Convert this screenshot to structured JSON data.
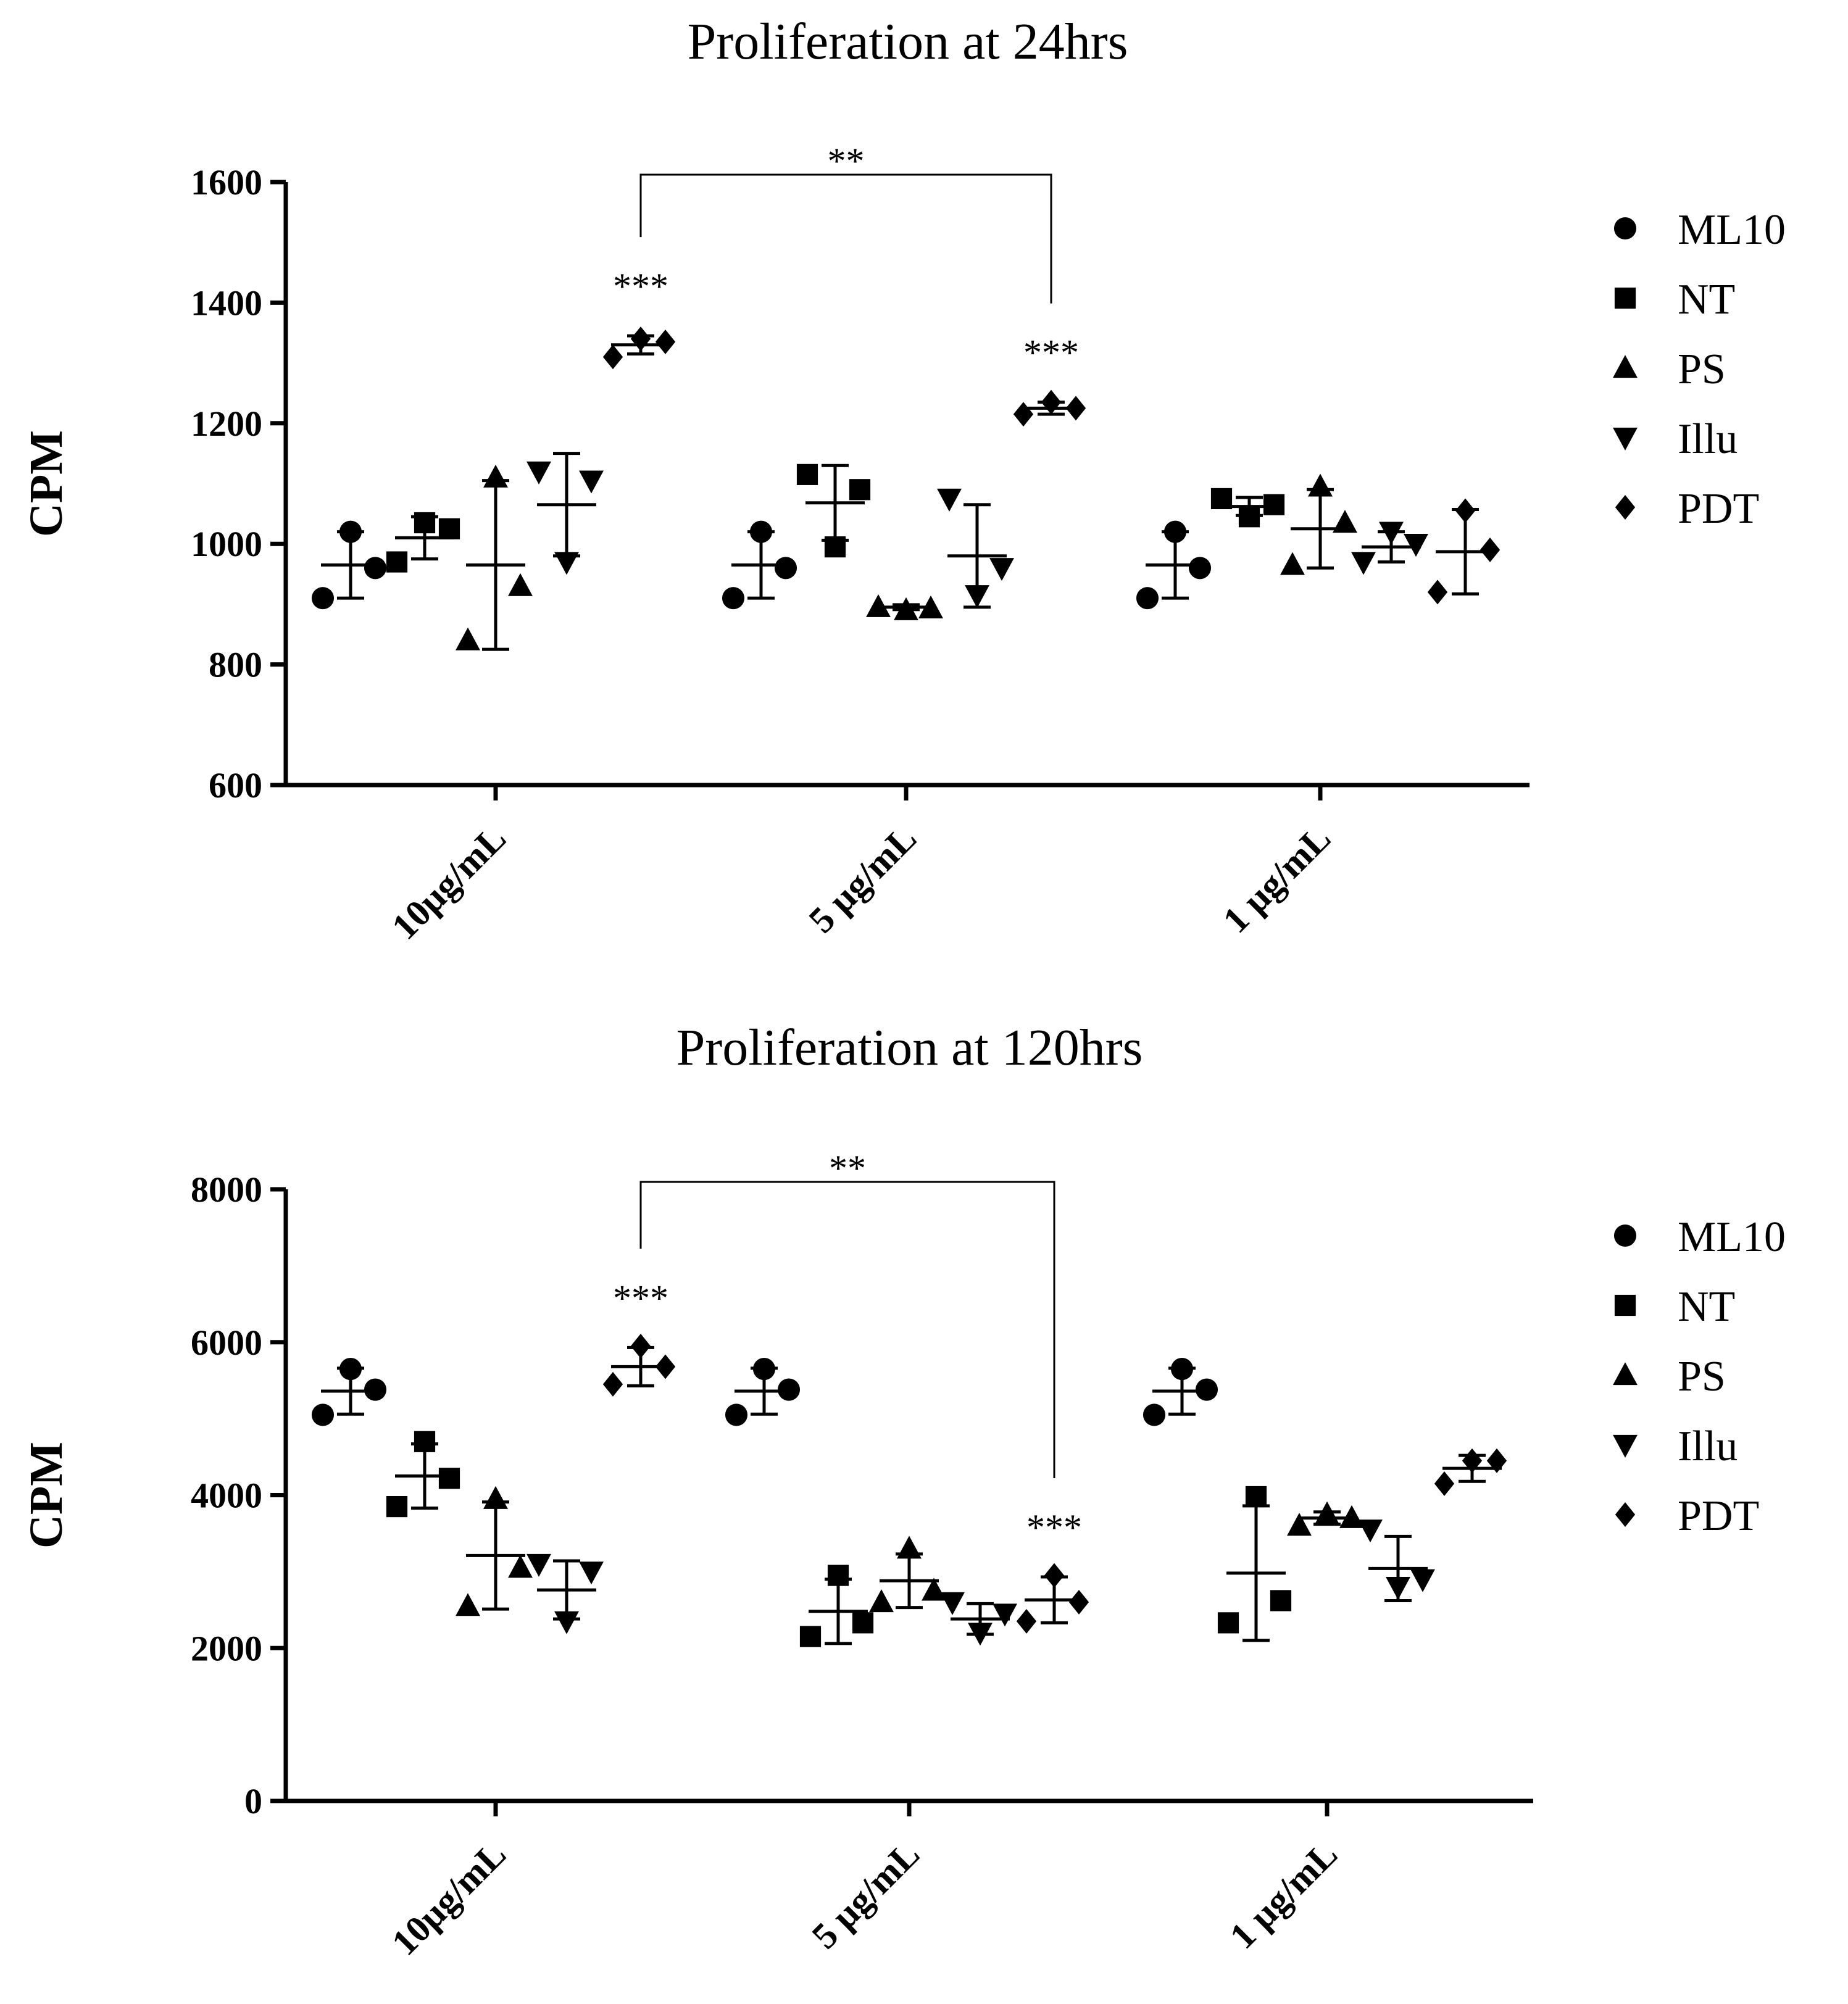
{
  "chart_data": [
    {
      "type": "scatter",
      "title": "Proliferation at 24hrs",
      "ylabel": "CPM",
      "xlabel": "",
      "ylim": [
        600,
        1600
      ],
      "yticks": [
        600,
        800,
        1000,
        1200,
        1400,
        1600
      ],
      "categories": [
        "10µg/mL",
        "5 µg/mL",
        "1 µg/mL"
      ],
      "legend": [
        "ML10",
        "NT",
        "PS",
        "Illu",
        "PDT"
      ],
      "legend_position": "right",
      "series": [
        {
          "name": "ML10",
          "marker": "circle",
          "points": [
            [
              910,
              1020,
              960
            ],
            [
              910,
              1020,
              960
            ],
            [
              910,
              1020,
              960
            ]
          ],
          "mean": [
            965,
            965,
            965
          ],
          "sd": [
            55,
            55,
            55
          ]
        },
        {
          "name": "NT",
          "marker": "square",
          "points": [
            [
              970,
              1035,
              1025
            ],
            [
              1115,
              995,
              1090
            ],
            [
              1075,
              1045,
              1065
            ]
          ],
          "mean": [
            1010,
            1068,
            1062
          ],
          "sd": [
            35,
            62,
            15
          ]
        },
        {
          "name": "PS",
          "marker": "triangle-up",
          "points": [
            [
              840,
              1110,
              930
            ],
            [
              895,
              890,
              893
            ],
            [
              965,
              1095,
              1035
            ]
          ],
          "mean": [
            965,
            895,
            1025
          ],
          "sd": [
            140,
            4,
            65
          ]
        },
        {
          "name": "Illu",
          "marker": "triangle-down",
          "points": [
            [
              1120,
              970,
              1105
            ],
            [
              1075,
              915,
              960
            ],
            [
              970,
              1020,
              1000
            ]
          ],
          "mean": [
            1065,
            980,
            995
          ],
          "sd": [
            85,
            85,
            25
          ]
        },
        {
          "name": "PDT",
          "marker": "diamond",
          "points": [
            [
              1310,
              1340,
              1335
            ],
            [
              1215,
              1235,
              1225
            ],
            [
              920,
              1055,
              990
            ]
          ],
          "mean": [
            1330,
            1225,
            987
          ],
          "sd": [
            15,
            10,
            70
          ]
        }
      ],
      "annotations": [
        {
          "text": "***",
          "category": "10µg/mL",
          "series": "PDT"
        },
        {
          "text": "***",
          "category": "5 µg/mL",
          "series": "PDT"
        },
        {
          "text": "**",
          "type": "bracket",
          "between": [
            "10µg/mL PDT",
            "5 µg/mL PDT"
          ]
        }
      ]
    },
    {
      "type": "scatter",
      "title": "Proliferation at 120hrs",
      "ylabel": "CPM",
      "xlabel": "",
      "ylim": [
        0,
        8000
      ],
      "yticks": [
        0,
        2000,
        4000,
        6000,
        8000
      ],
      "categories": [
        "10µg/mL",
        "5 µg/mL",
        "1 µg/mL"
      ],
      "legend": [
        "ML10",
        "NT",
        "PS",
        "Illu",
        "PDT"
      ],
      "legend_position": "right",
      "series": [
        {
          "name": "ML10",
          "marker": "circle",
          "points": [
            [
              5050,
              5650,
              5380
            ],
            [
              5050,
              5650,
              5380
            ],
            [
              5050,
              5650,
              5380
            ]
          ],
          "mean": [
            5360,
            5360,
            5360
          ],
          "sd": [
            300,
            300,
            300
          ]
        },
        {
          "name": "NT",
          "marker": "square",
          "points": [
            [
              3850,
              4700,
              4220
            ],
            [
              2150,
              2950,
              2330
            ],
            [
              2330,
              3980,
              2620
            ]
          ],
          "mean": [
            4250,
            2480,
            2980
          ],
          "sd": [
            420,
            420,
            880
          ]
        },
        {
          "name": "PS",
          "marker": "triangle-up",
          "points": [
            [
              2550,
              3950,
              3050
            ],
            [
              2600,
              3300,
              2750
            ],
            [
              3600,
              3750,
              3700
            ]
          ],
          "mean": [
            3210,
            2880,
            3700
          ],
          "sd": [
            700,
            350,
            80
          ]
        },
        {
          "name": "Illu",
          "marker": "triangle-down",
          "points": [
            [
              3100,
              2350,
              3000
            ],
            [
              2600,
              2200,
              2450
            ],
            [
              3550,
              2800,
              2900
            ]
          ],
          "mean": [
            2760,
            2380,
            3040
          ],
          "sd": [
            380,
            200,
            420
          ]
        },
        {
          "name": "PDT",
          "marker": "diamond",
          "points": [
            [
              5450,
              5950,
              5680
            ],
            [
              2350,
              2950,
              2600
            ],
            [
              4150,
              4450,
              4450
            ]
          ],
          "mean": [
            5680,
            2630,
            4350
          ],
          "sd": [
            250,
            300,
            170
          ]
        }
      ],
      "annotations": [
        {
          "text": "***",
          "category": "10µg/mL",
          "series": "PDT"
        },
        {
          "text": "***",
          "category": "5 µg/mL",
          "series": "PDT"
        },
        {
          "text": "**",
          "type": "bracket",
          "between": [
            "10µg/mL PDT",
            "5 µg/mL PDT"
          ]
        }
      ]
    }
  ]
}
